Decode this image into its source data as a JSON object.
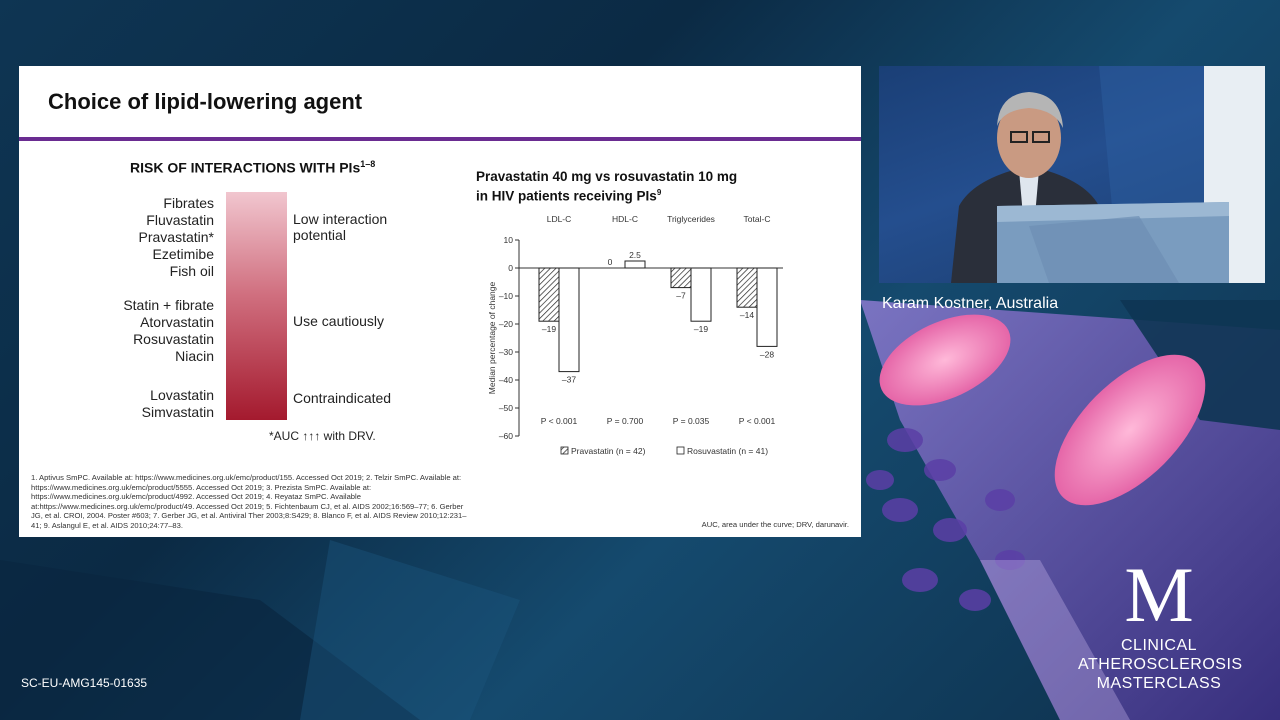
{
  "slide": {
    "title": "Choice of lipid-lowering agent",
    "risk": {
      "heading": "RISK OF INTERACTIONS WITH PIs",
      "heading_sup": "1–8",
      "groups": [
        [
          "Fibrates",
          "Fluvastatin",
          "Pravastatin*",
          "Ezetimibe",
          "Fish oil"
        ],
        [
          "Statin + fibrate",
          "Atorvastatin",
          "Rosuvastatin",
          "Niacin"
        ],
        [
          "Lovastatin",
          "Simvastatin"
        ]
      ],
      "labels": {
        "low": [
          "Low interaction",
          "potential"
        ],
        "caution": "Use cautiously",
        "contra": "Contraindicated"
      },
      "note": "*AUC ↑↑↑ with DRV."
    },
    "references": "1. Aptivus SmPC. Available at: https://www.medicines.org.uk/emc/product/155. Accessed Oct 2019; 2. Telzir SmPC. Available at: https://www.medicines.org.uk/emc/product/5555. Accessed Oct 2019; 3. Prezista SmPC. Available at: https://www.medicines.org.uk/emc/product/4992. Accessed Oct 2019; 4. Reyataz SmPC. Available at:https://www.medicines.org.uk/emc/product/49. Accessed Oct 2019; 5. Fichtenbaum CJ, et al. AIDS 2002;16:569–77; 6. Gerber JG, et al. CROI, 2004. Poster #603; 7. Gerber JG, et al. Antiviral Ther 2003;8:S429; 8. Blanco F, et al. AIDS Review 2010;12:231–41; 9. Aslangul E, et al. AIDS 2010;24:77–83.",
    "abbreviations": "AUC, area under the curve; DRV, darunavir."
  },
  "chart_data": {
    "type": "bar",
    "title_lines": [
      "Pravastatin 40 mg vs rosuvastatin 10 mg",
      "in HIV patients receiving PIs"
    ],
    "title_sup": "9",
    "categories": [
      "LDL-C",
      "HDL-C",
      "Triglycerides",
      "Total-C"
    ],
    "series": [
      {
        "name": "Pravastatin",
        "n_label": "n = 42",
        "values": [
          -19,
          0,
          -7,
          -14
        ],
        "pattern": "hatched"
      },
      {
        "name": "Rosuvastatin",
        "n_label": "n = 41",
        "values": [
          -37,
          2.5,
          -19,
          -28
        ],
        "pattern": "open"
      }
    ],
    "value_labels": [
      [
        "–19",
        "0",
        "–7",
        "–14"
      ],
      [
        "–37",
        "2.5",
        "–19",
        "–28"
      ]
    ],
    "p_values": [
      "P < 0.001",
      "P = 0.700",
      "P = 0.035",
      "P < 0.001"
    ],
    "ylabel": "Median percentage of change",
    "ylim": [
      -60,
      10
    ],
    "yticks": [
      10,
      0,
      -10,
      -20,
      -30,
      -40,
      -50,
      -60
    ],
    "ytick_labels": [
      "10",
      "0",
      "–10",
      "–20",
      "–30",
      "–40",
      "–50",
      "–60"
    ],
    "legend": [
      "Pravastatin (n = 42)",
      "Rosuvastatin (n = 41)"
    ],
    "legend_position": "bottom",
    "grid": false
  },
  "video": {
    "caption": "Karam Kostner, Australia"
  },
  "footer": {
    "code": "SC-EU-AMG145-01635"
  },
  "logo": {
    "letter": "M",
    "lines": [
      "CLINICAL",
      "ATHEROSCLEROSIS",
      "MASTERCLASS"
    ]
  }
}
